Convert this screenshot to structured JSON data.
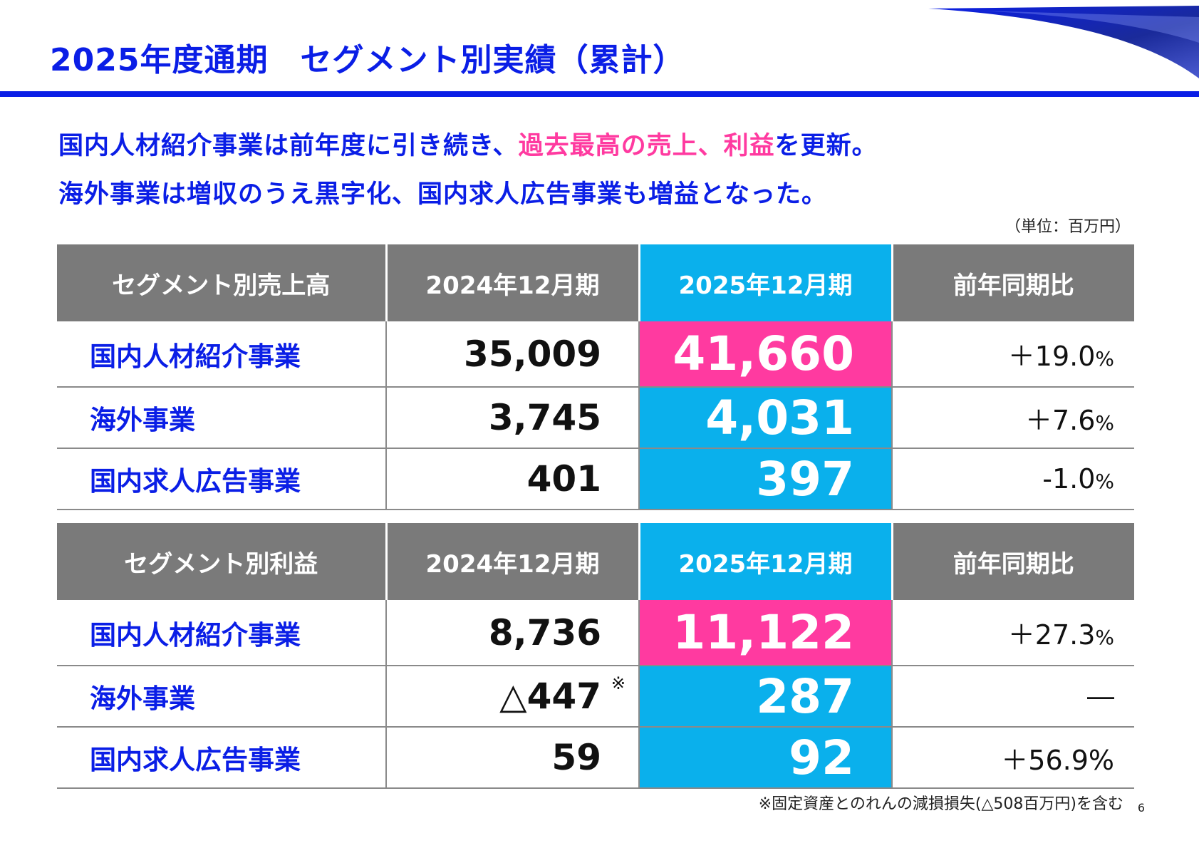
{
  "title": "2025年度通期　セグメント別実績（累計）",
  "lead": {
    "line1_a": "国内人材紹介事業は前年度に引き続き、",
    "line1_hl": "過去最高の売上、利益",
    "line1_b": "を更新。",
    "line2": "海外事業は増収のうえ黒字化、国内求人広告事業も増益となった。"
  },
  "unit_note": "（単位：百万円）",
  "sales_table": {
    "headers": [
      "セグメント別売上高",
      "2024年12月期",
      "2025年12月期",
      "前年同期比"
    ],
    "rows": [
      {
        "name": "国内人材紹介事業",
        "prev": "35,009",
        "cur": "41,660",
        "yoy": "＋19.0",
        "pct": "%"
      },
      {
        "name": "海外事業",
        "prev": "3,745",
        "cur": "4,031",
        "yoy": "＋7.6",
        "pct": "%"
      },
      {
        "name": "国内求人広告事業",
        "prev": "401",
        "cur": "397",
        "yoy": "-1.0",
        "pct": "%"
      }
    ]
  },
  "profit_table": {
    "headers": [
      "セグメント別利益",
      "2024年12月期",
      "2025年12月期",
      "前年同期比"
    ],
    "rows": [
      {
        "name": "国内人材紹介事業",
        "prev": "8,736",
        "cur": "11,122",
        "yoy": "＋27.3",
        "pct": "%"
      },
      {
        "name": "海外事業",
        "prev": "△447",
        "mark": "※",
        "cur": "287",
        "yoy": "―",
        "pct": ""
      },
      {
        "name": "国内求人広告事業",
        "prev": "59",
        "cur": "92",
        "yoy": "＋56.9%",
        "pct": ""
      }
    ]
  },
  "footnote": "※固定資産とのれんの減損損失(△508百万円)を含む",
  "page_number": "6",
  "colors": {
    "brand_blue": "#0a1ee6",
    "highlight_pink": "#ff3aa0",
    "current_cyan": "#0ab0ec",
    "header_gray": "#7a7a7a"
  }
}
